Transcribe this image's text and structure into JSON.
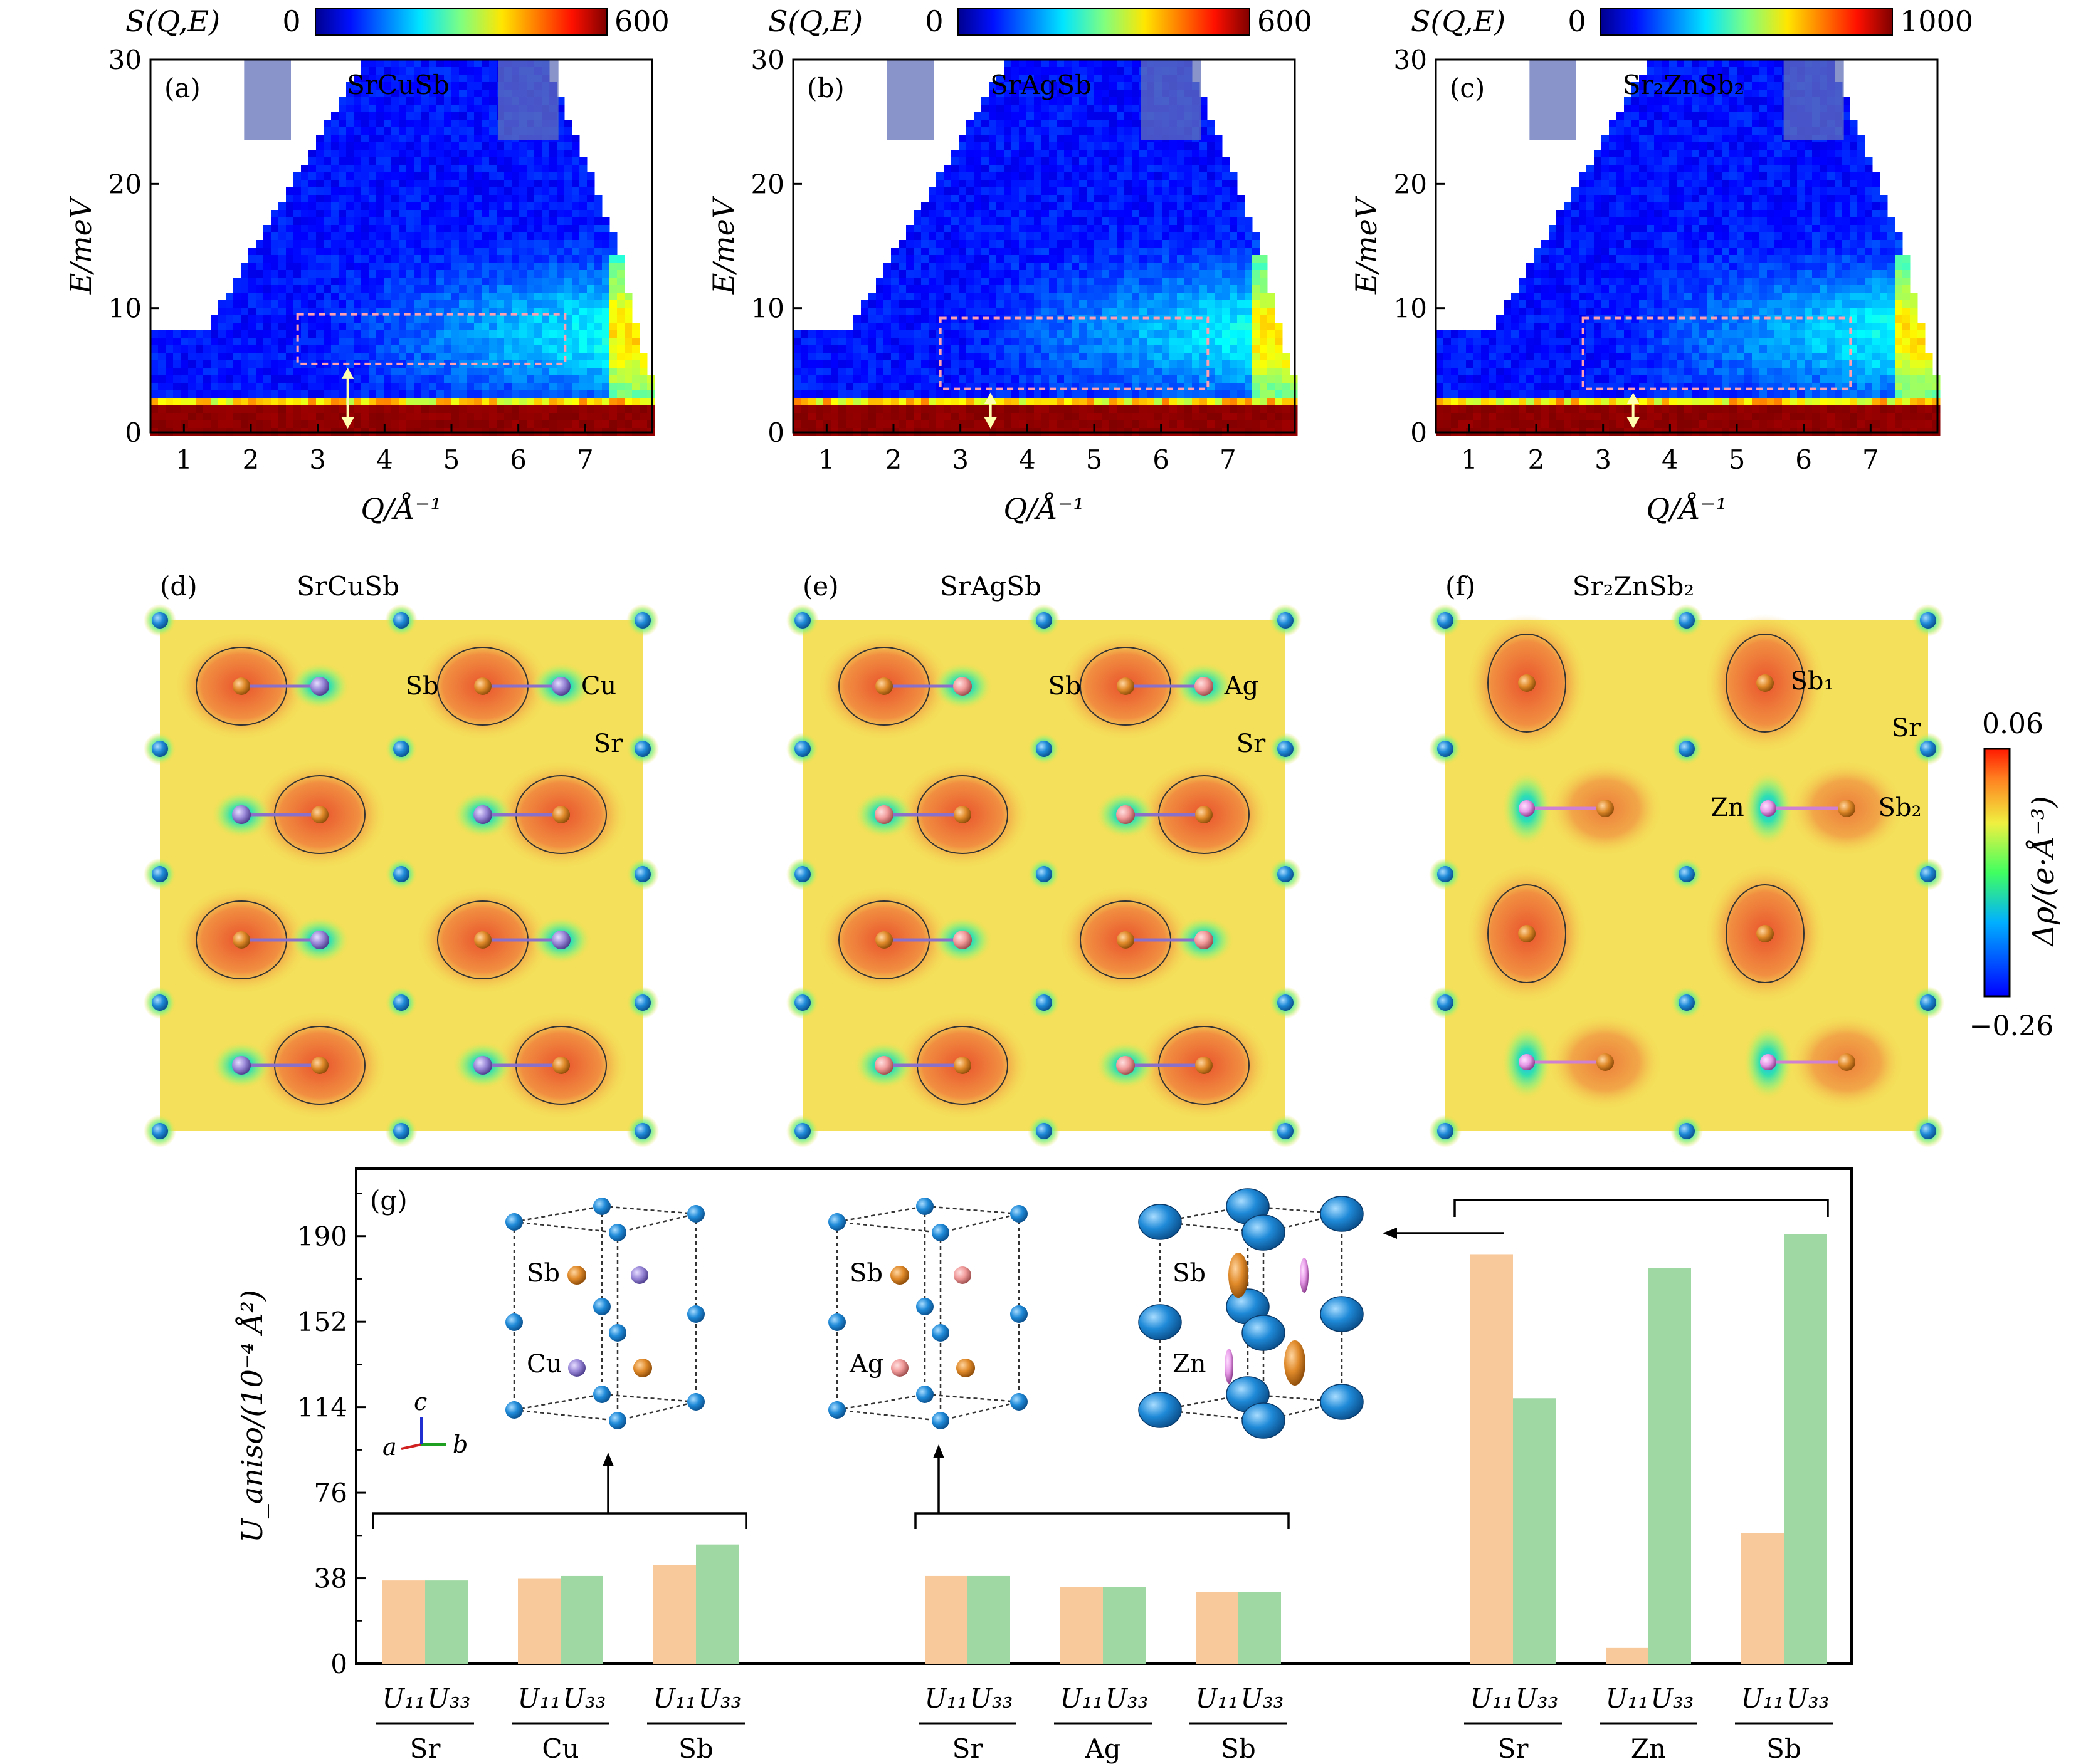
{
  "panels_top": [
    {
      "label": "(a)",
      "compound": "SrCuSb",
      "cbar_label": "S(Q,E)",
      "cbar_min": "0",
      "cbar_max": "600"
    },
    {
      "label": "(b)",
      "compound": "SrAgSb",
      "cbar_label": "S(Q,E)",
      "cbar_min": "0",
      "cbar_max": "600"
    },
    {
      "label": "(c)",
      "compound": "Sr₂ZnSb₂",
      "cbar_label": "S(Q,E)",
      "cbar_min": "0",
      "cbar_max": "1000"
    }
  ],
  "axes_top": {
    "ylabel": "E/meV",
    "xlabel": "Q/Å⁻¹",
    "yticks": [
      "0",
      "10",
      "20",
      "30"
    ],
    "xticks": [
      "1",
      "2",
      "3",
      "4",
      "5",
      "6",
      "7"
    ]
  },
  "panels_mid": [
    {
      "label": "(d)",
      "title": "SrCuSb",
      "atoms": [
        "Sb",
        "Cu",
        "Sr"
      ]
    },
    {
      "label": "(e)",
      "title": "SrAgSb",
      "atoms": [
        "Sb",
        "Ag",
        "Sr"
      ]
    },
    {
      "label": "(f)",
      "title": "Sr₂ZnSb₂",
      "atoms": [
        "Sb₁",
        "Sr",
        "Zn",
        "Sb₂"
      ]
    }
  ],
  "density_cbar": {
    "label": "Δρ/(e·Å⁻³)",
    "max": "0.06",
    "min": "−0.26"
  },
  "panel_g": {
    "label": "(g)",
    "ylabel": "U_aniso/(10⁻⁴ Å²)",
    "yticks": [
      "0",
      "38",
      "76",
      "114",
      "152",
      "190"
    ],
    "axes_labels": {
      "a": "a",
      "b": "b",
      "c": "c"
    },
    "inset_labels": [
      [
        "Sb",
        "Cu"
      ],
      [
        "Sb",
        "Ag"
      ],
      [
        "Sb",
        "Zn"
      ]
    ],
    "sub_u11": "U₁₁",
    "sub_u33": "U₃₃"
  },
  "colors": {
    "U11": "#f8c99a",
    "U33": "#9fd8a2",
    "Sr": "#1f8ad8",
    "Sb": "#e08a2a",
    "Cu": "#9a88d8",
    "Ag": "#f19a9a",
    "Zn": "#e79be8"
  },
  "chart_data": [
    {
      "type": "heatmap",
      "title": "SrCuSb",
      "xlabel": "Q/Å⁻¹",
      "ylabel": "E/meV",
      "xlim": [
        0.5,
        8
      ],
      "ylim": [
        0,
        30
      ],
      "colorbar": [
        0,
        600
      ]
    },
    {
      "type": "heatmap",
      "title": "SrAgSb",
      "xlabel": "Q/Å⁻¹",
      "ylabel": "E/meV",
      "xlim": [
        0.5,
        8
      ],
      "ylim": [
        0,
        30
      ],
      "colorbar": [
        0,
        600
      ]
    },
    {
      "type": "heatmap",
      "title": "Sr₂ZnSb₂",
      "xlabel": "Q/Å⁻¹",
      "ylabel": "E/meV",
      "xlim": [
        0.5,
        8
      ],
      "ylim": [
        0,
        30
      ],
      "colorbar": [
        0,
        1000
      ]
    },
    {
      "type": "bar",
      "ylabel": "U_aniso/(10⁻⁴ Å²)",
      "ylim": [
        0,
        220
      ],
      "groups": [
        {
          "compound": "SrCuSb",
          "categories": [
            "Sr",
            "Cu",
            "Sb"
          ],
          "U11": [
            37,
            38,
            44
          ],
          "U33": [
            37,
            39,
            53
          ]
        },
        {
          "compound": "SrAgSb",
          "categories": [
            "Sr",
            "Ag",
            "Sb"
          ],
          "U11": [
            39,
            34,
            32
          ],
          "U33": [
            39,
            34,
            32
          ]
        },
        {
          "compound": "Sr₂ZnSb₂",
          "categories": [
            "Sr",
            "Zn",
            "Sb"
          ],
          "U11": [
            182,
            7,
            58
          ],
          "U33": [
            118,
            176,
            191
          ]
        }
      ]
    }
  ]
}
